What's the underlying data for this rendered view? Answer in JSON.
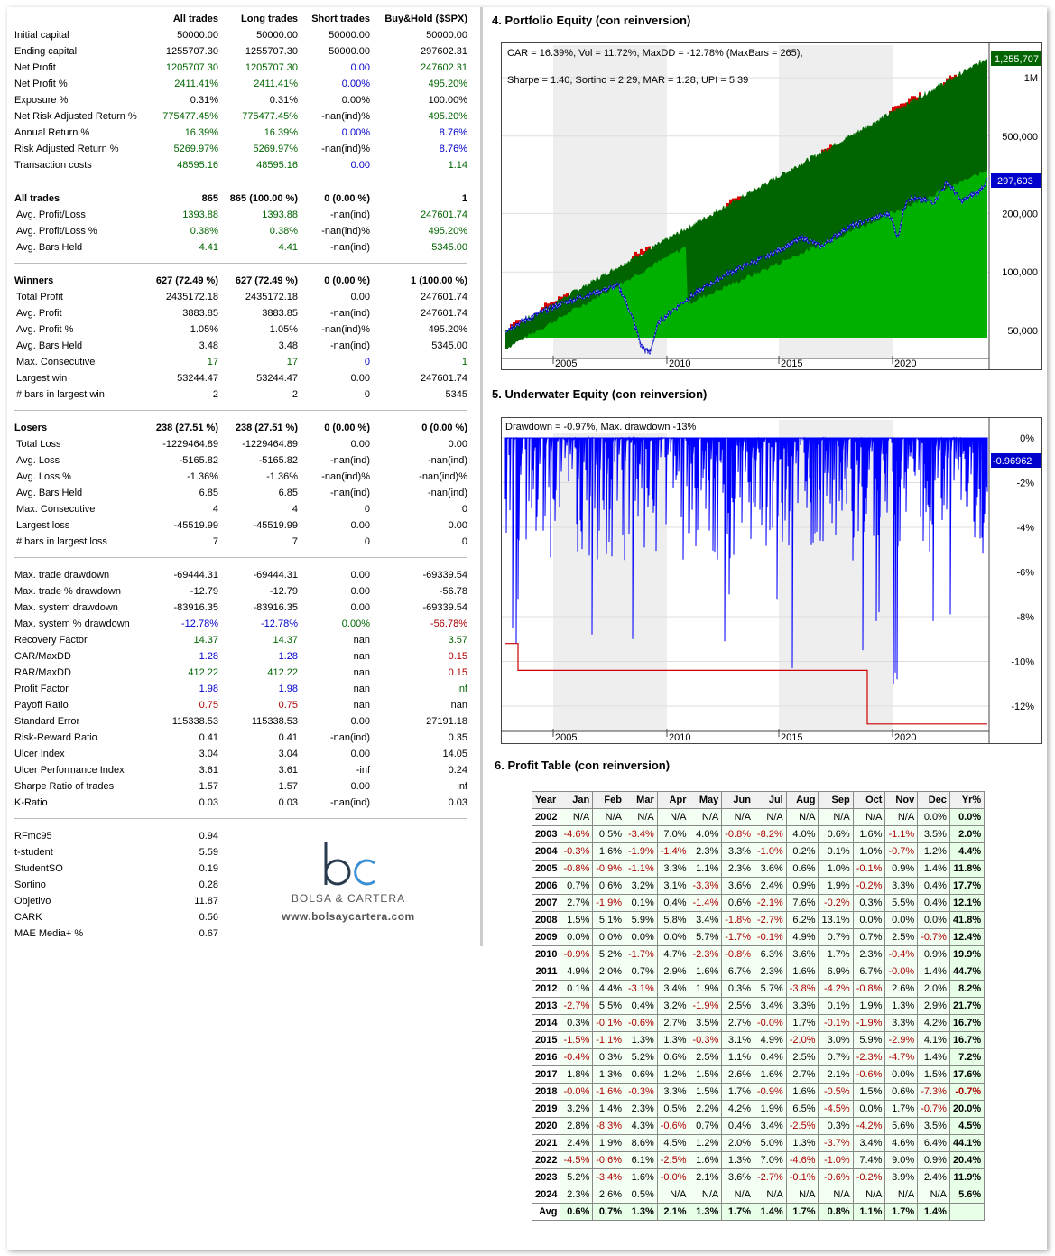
{
  "stats": {
    "columns": [
      "All trades",
      "Long trades",
      "Short trades",
      "Buy&Hold ($SPX)"
    ],
    "groups": [
      [
        {
          "label": "Initial capital",
          "v": [
            "50000.00",
            "50000.00",
            "50000.00",
            "50000.00"
          ],
          "c": [
            "",
            "",
            "",
            ""
          ]
        },
        {
          "label": "Ending capital",
          "v": [
            "1255707.30",
            "1255707.30",
            "50000.00",
            "297602.31"
          ],
          "c": [
            "",
            "",
            "",
            ""
          ]
        },
        {
          "label": "Net Profit",
          "v": [
            "1205707.30",
            "1205707.30",
            "0.00",
            "247602.31"
          ],
          "c": [
            "green",
            "green",
            "blue",
            "green"
          ]
        },
        {
          "label": "Net Profit %",
          "v": [
            "2411.41%",
            "2411.41%",
            "0.00%",
            "495.20%"
          ],
          "c": [
            "green",
            "green",
            "blue",
            "green"
          ]
        },
        {
          "label": "Exposure %",
          "v": [
            "0.31%",
            "0.31%",
            "0.00%",
            "100.00%"
          ],
          "c": [
            "",
            "",
            "",
            ""
          ]
        },
        {
          "label": "Net Risk Adjusted Return %",
          "v": [
            "775477.45%",
            "775477.45%",
            "-nan(ind)%",
            "495.20%"
          ],
          "c": [
            "green",
            "green",
            "",
            "green"
          ]
        },
        {
          "label": "Annual Return %",
          "v": [
            "16.39%",
            "16.39%",
            "0.00%",
            "8.76%"
          ],
          "c": [
            "green",
            "green",
            "blue",
            "blue"
          ]
        },
        {
          "label": "Risk Adjusted Return %",
          "v": [
            "5269.97%",
            "5269.97%",
            "-nan(ind)%",
            "8.76%"
          ],
          "c": [
            "green",
            "green",
            "",
            "blue"
          ]
        },
        {
          "label": "Transaction costs",
          "v": [
            "48595.16",
            "48595.16",
            "0.00",
            "1.14"
          ],
          "c": [
            "green",
            "green",
            "blue",
            "green"
          ]
        }
      ],
      [
        {
          "label": "All trades",
          "v": [
            "865",
            "865 (100.00 %)",
            "0 (0.00 %)",
            "1"
          ],
          "c": [
            "",
            "",
            "",
            ""
          ],
          "bold": true
        },
        {
          "label": " Avg. Profit/Loss",
          "v": [
            "1393.88",
            "1393.88",
            "-nan(ind)",
            "247601.74"
          ],
          "c": [
            "green",
            "green",
            "",
            "green"
          ]
        },
        {
          "label": " Avg. Profit/Loss %",
          "v": [
            "0.38%",
            "0.38%",
            "-nan(ind)%",
            "495.20%"
          ],
          "c": [
            "green",
            "green",
            "",
            "green"
          ]
        },
        {
          "label": " Avg. Bars Held",
          "v": [
            "4.41",
            "4.41",
            "-nan(ind)",
            "5345.00"
          ],
          "c": [
            "green",
            "green",
            "",
            "green"
          ]
        }
      ],
      [
        {
          "label": "Winners",
          "v": [
            "627 (72.49 %)",
            "627 (72.49 %)",
            "0 (0.00 %)",
            "1 (100.00 %)"
          ],
          "c": [
            "",
            "",
            "",
            ""
          ],
          "bold": true
        },
        {
          "label": " Total Profit",
          "v": [
            "2435172.18",
            "2435172.18",
            "0.00",
            "247601.74"
          ],
          "c": [
            "",
            "",
            "",
            ""
          ]
        },
        {
          "label": " Avg. Profit",
          "v": [
            "3883.85",
            "3883.85",
            "-nan(ind)",
            "247601.74"
          ],
          "c": [
            "",
            "",
            "",
            ""
          ]
        },
        {
          "label": " Avg. Profit %",
          "v": [
            "1.05%",
            "1.05%",
            "-nan(ind)%",
            "495.20%"
          ],
          "c": [
            "",
            "",
            "",
            ""
          ]
        },
        {
          "label": " Avg. Bars Held",
          "v": [
            "3.48",
            "3.48",
            "-nan(ind)",
            "5345.00"
          ],
          "c": [
            "",
            "",
            "",
            ""
          ]
        },
        {
          "label": " Max. Consecutive",
          "v": [
            "17",
            "17",
            "0",
            "1"
          ],
          "c": [
            "green",
            "green",
            "blue",
            "green"
          ]
        },
        {
          "label": " Largest win",
          "v": [
            "53244.47",
            "53244.47",
            "0.00",
            "247601.74"
          ],
          "c": [
            "",
            "",
            "",
            ""
          ]
        },
        {
          "label": " # bars in largest win",
          "v": [
            "2",
            "2",
            "0",
            "5345"
          ],
          "c": [
            "",
            "",
            "",
            ""
          ]
        }
      ],
      [
        {
          "label": "Losers",
          "v": [
            "238 (27.51 %)",
            "238 (27.51 %)",
            "0 (0.00 %)",
            "0 (0.00 %)"
          ],
          "c": [
            "",
            "",
            "",
            ""
          ],
          "bold": true
        },
        {
          "label": " Total Loss",
          "v": [
            "-1229464.89",
            "-1229464.89",
            "0.00",
            "0.00"
          ],
          "c": [
            "",
            "",
            "",
            ""
          ]
        },
        {
          "label": " Avg. Loss",
          "v": [
            "-5165.82",
            "-5165.82",
            "-nan(ind)",
            "-nan(ind)"
          ],
          "c": [
            "",
            "",
            "",
            ""
          ]
        },
        {
          "label": " Avg. Loss %",
          "v": [
            "-1.36%",
            "-1.36%",
            "-nan(ind)%",
            "-nan(ind)%"
          ],
          "c": [
            "",
            "",
            "",
            ""
          ]
        },
        {
          "label": " Avg. Bars Held",
          "v": [
            "6.85",
            "6.85",
            "-nan(ind)",
            "-nan(ind)"
          ],
          "c": [
            "",
            "",
            "",
            ""
          ]
        },
        {
          "label": " Max. Consecutive",
          "v": [
            "4",
            "4",
            "0",
            "0"
          ],
          "c": [
            "",
            "",
            "",
            ""
          ]
        },
        {
          "label": " Largest loss",
          "v": [
            "-45519.99",
            "-45519.99",
            "0.00",
            "0.00"
          ],
          "c": [
            "",
            "",
            "",
            ""
          ]
        },
        {
          "label": " # bars in largest loss",
          "v": [
            "7",
            "7",
            "0",
            "0"
          ],
          "c": [
            "",
            "",
            "",
            ""
          ]
        }
      ],
      [
        {
          "label": "Max. trade drawdown",
          "v": [
            "-69444.31",
            "-69444.31",
            "0.00",
            "-69339.54"
          ],
          "c": [
            "",
            "",
            "",
            ""
          ]
        },
        {
          "label": "Max. trade % drawdown",
          "v": [
            "-12.79",
            "-12.79",
            "0.00",
            "-56.78"
          ],
          "c": [
            "",
            "",
            "",
            ""
          ]
        },
        {
          "label": "Max. system drawdown",
          "v": [
            "-83916.35",
            "-83916.35",
            "0.00",
            "-69339.54"
          ],
          "c": [
            "",
            "",
            "",
            ""
          ]
        },
        {
          "label": "Max. system % drawdown",
          "v": [
            "-12.78%",
            "-12.78%",
            "0.00%",
            "-56.78%"
          ],
          "c": [
            "blue",
            "blue",
            "green",
            "red"
          ]
        },
        {
          "label": "Recovery Factor",
          "v": [
            "14.37",
            "14.37",
            "nan",
            "3.57"
          ],
          "c": [
            "green",
            "green",
            "",
            "green"
          ]
        },
        {
          "label": "CAR/MaxDD",
          "v": [
            "1.28",
            "1.28",
            "nan",
            "0.15"
          ],
          "c": [
            "blue",
            "blue",
            "",
            "red"
          ]
        },
        {
          "label": "RAR/MaxDD",
          "v": [
            "412.22",
            "412.22",
            "nan",
            "0.15"
          ],
          "c": [
            "green",
            "green",
            "",
            "red"
          ]
        },
        {
          "label": "Profit Factor",
          "v": [
            "1.98",
            "1.98",
            "nan",
            "inf"
          ],
          "c": [
            "blue",
            "blue",
            "",
            "green"
          ]
        },
        {
          "label": "Payoff Ratio",
          "v": [
            "0.75",
            "0.75",
            "nan",
            "nan"
          ],
          "c": [
            "red",
            "red",
            "",
            ""
          ]
        },
        {
          "label": "Standard Error",
          "v": [
            "115338.53",
            "115338.53",
            "0.00",
            "27191.18"
          ],
          "c": [
            "",
            "",
            "",
            ""
          ]
        },
        {
          "label": "Risk-Reward Ratio",
          "v": [
            "0.41",
            "0.41",
            "-nan(ind)",
            "0.35"
          ],
          "c": [
            "",
            "",
            "",
            ""
          ]
        },
        {
          "label": "Ulcer Index",
          "v": [
            "3.04",
            "3.04",
            "0.00",
            "14.05"
          ],
          "c": [
            "",
            "",
            "",
            ""
          ]
        },
        {
          "label": "Ulcer Performance Index",
          "v": [
            "3.61",
            "3.61",
            "-inf",
            "0.24"
          ],
          "c": [
            "",
            "",
            "",
            ""
          ]
        },
        {
          "label": "Sharpe Ratio of trades",
          "v": [
            "1.57",
            "1.57",
            "0.00",
            "inf"
          ],
          "c": [
            "",
            "",
            "",
            ""
          ]
        },
        {
          "label": "K-Ratio",
          "v": [
            "0.03",
            "0.03",
            "-nan(ind)",
            "0.03"
          ],
          "c": [
            "",
            "",
            "",
            ""
          ]
        }
      ]
    ],
    "extra": [
      {
        "label": "RFmc95",
        "v": "0.94"
      },
      {
        "label": "t-student",
        "v": "5.59"
      },
      {
        "label": "StudentSO",
        "v": "0.19"
      },
      {
        "label": "Sortino",
        "v": "0.28"
      },
      {
        "label": "Objetivo",
        "v": "11.87"
      },
      {
        "label": "CARK",
        "v": "0.56"
      },
      {
        "label": "MAE Media+ %",
        "v": "0.67"
      }
    ]
  },
  "logo": {
    "letters": "bc",
    "name": "BOLSA & CARTERA",
    "url": "www.bolsaycartera.com"
  },
  "equity": {
    "title": "4. Portfolio Equity (con reinversion)",
    "stats_line1": "CAR = 16.39%, Vol = 11.72%, MaxDD = -12.78% (MaxBars = 265),",
    "stats_line2": "Sharpe = 1.40, Sortino = 2.29, MAR = 1.28, UPI = 5.39",
    "last_value_label": "1,255,707",
    "bh_value_label": "297,603",
    "yticks": [
      "1M",
      "500,000",
      "200,000",
      "100,000",
      "50,000"
    ],
    "xticks": [
      "2005",
      "2010",
      "2015",
      "2020"
    ]
  },
  "underwater": {
    "title": "5. Underwater Equity (con reinversion)",
    "stats_line": "Drawdown = -0.97%, Max. drawdown -13%",
    "last_value_label": "-0.96962",
    "yticks": [
      "0%",
      "-2%",
      "-4%",
      "-6%",
      "-8%",
      "-10%",
      "-12%"
    ],
    "xticks": [
      "2005",
      "2010",
      "2015",
      "2020"
    ]
  },
  "profit_table": {
    "title": "6. Profit Table (con reinversion)",
    "headers": [
      "Year",
      "Jan",
      "Feb",
      "Mar",
      "Apr",
      "May",
      "Jun",
      "Jul",
      "Aug",
      "Sep",
      "Oct",
      "Nov",
      "Dec",
      "Yr%"
    ],
    "rows": [
      [
        "2002",
        "N/A",
        "N/A",
        "N/A",
        "N/A",
        "N/A",
        "N/A",
        "N/A",
        "N/A",
        "N/A",
        "N/A",
        "N/A",
        "0.0%",
        "0.0%"
      ],
      [
        "2003",
        "-4.6%",
        "0.5%",
        "-3.4%",
        "7.0%",
        "4.0%",
        "-0.8%",
        "-8.2%",
        "4.0%",
        "0.6%",
        "1.6%",
        "-1.1%",
        "3.5%",
        "2.0%"
      ],
      [
        "2004",
        "-0.3%",
        "1.6%",
        "-1.9%",
        "-1.4%",
        "2.3%",
        "3.3%",
        "-1.0%",
        "0.2%",
        "0.1%",
        "1.0%",
        "-0.7%",
        "1.2%",
        "4.4%"
      ],
      [
        "2005",
        "-0.8%",
        "-0.9%",
        "-1.1%",
        "3.3%",
        "1.1%",
        "2.3%",
        "3.6%",
        "0.6%",
        "1.0%",
        "-0.1%",
        "0.9%",
        "1.4%",
        "11.8%"
      ],
      [
        "2006",
        "0.7%",
        "0.6%",
        "3.2%",
        "3.1%",
        "-3.3%",
        "3.6%",
        "2.4%",
        "0.9%",
        "1.9%",
        "-0.2%",
        "3.3%",
        "0.4%",
        "17.7%"
      ],
      [
        "2007",
        "2.7%",
        "-1.9%",
        "0.1%",
        "0.4%",
        "-1.4%",
        "0.6%",
        "-2.1%",
        "7.6%",
        "-0.2%",
        "0.3%",
        "5.5%",
        "0.4%",
        "12.1%"
      ],
      [
        "2008",
        "1.5%",
        "5.1%",
        "5.9%",
        "5.8%",
        "3.4%",
        "-1.8%",
        "-2.7%",
        "6.2%",
        "13.1%",
        "0.0%",
        "0.0%",
        "0.0%",
        "41.8%"
      ],
      [
        "2009",
        "0.0%",
        "0.0%",
        "0.0%",
        "0.0%",
        "5.7%",
        "-1.7%",
        "-0.1%",
        "4.9%",
        "0.7%",
        "0.7%",
        "2.5%",
        "-0.7%",
        "12.4%"
      ],
      [
        "2010",
        "-0.9%",
        "5.2%",
        "-1.7%",
        "4.7%",
        "-2.3%",
        "-0.8%",
        "6.3%",
        "3.6%",
        "1.7%",
        "2.3%",
        "-0.4%",
        "0.9%",
        "19.9%"
      ],
      [
        "2011",
        "4.9%",
        "2.0%",
        "0.7%",
        "2.9%",
        "1.6%",
        "6.7%",
        "2.3%",
        "1.6%",
        "6.9%",
        "6.7%",
        "-0.0%",
        "1.4%",
        "44.7%"
      ],
      [
        "2012",
        "0.1%",
        "4.4%",
        "-3.1%",
        "3.4%",
        "1.9%",
        "0.3%",
        "5.7%",
        "-3.8%",
        "-4.2%",
        "-0.8%",
        "2.6%",
        "2.0%",
        "8.2%"
      ],
      [
        "2013",
        "-2.7%",
        "5.5%",
        "0.4%",
        "3.2%",
        "-1.9%",
        "2.5%",
        "3.4%",
        "3.3%",
        "0.1%",
        "1.9%",
        "1.3%",
        "2.9%",
        "21.7%"
      ],
      [
        "2014",
        "0.3%",
        "-0.1%",
        "-0.6%",
        "2.7%",
        "3.5%",
        "2.7%",
        "-0.0%",
        "1.7%",
        "-0.1%",
        "-1.9%",
        "3.3%",
        "4.2%",
        "16.7%"
      ],
      [
        "2015",
        "-1.5%",
        "-1.1%",
        "1.3%",
        "1.3%",
        "-0.3%",
        "3.1%",
        "4.9%",
        "-2.0%",
        "3.0%",
        "5.9%",
        "-2.9%",
        "4.1%",
        "16.7%"
      ],
      [
        "2016",
        "-0.4%",
        "0.3%",
        "5.2%",
        "0.6%",
        "2.5%",
        "1.1%",
        "0.4%",
        "2.5%",
        "0.7%",
        "-2.3%",
        "-4.7%",
        "1.4%",
        "7.2%"
      ],
      [
        "2017",
        "1.8%",
        "1.3%",
        "0.6%",
        "1.2%",
        "1.5%",
        "2.6%",
        "1.6%",
        "2.7%",
        "2.1%",
        "-0.6%",
        "0.0%",
        "1.5%",
        "17.6%"
      ],
      [
        "2018",
        "-0.0%",
        "-1.6%",
        "-0.3%",
        "3.3%",
        "1.5%",
        "1.7%",
        "-0.9%",
        "1.6%",
        "-0.5%",
        "1.5%",
        "0.6%",
        "-7.3%",
        "-0.7%"
      ],
      [
        "2019",
        "3.2%",
        "1.4%",
        "2.3%",
        "0.5%",
        "2.2%",
        "4.2%",
        "1.9%",
        "6.5%",
        "-4.5%",
        "0.0%",
        "1.7%",
        "-0.7%",
        "20.0%"
      ],
      [
        "2020",
        "2.8%",
        "-8.3%",
        "4.3%",
        "-0.6%",
        "0.7%",
        "0.4%",
        "3.4%",
        "-2.5%",
        "0.3%",
        "-4.2%",
        "5.6%",
        "3.5%",
        "4.5%"
      ],
      [
        "2021",
        "2.4%",
        "1.9%",
        "8.6%",
        "4.5%",
        "1.2%",
        "2.0%",
        "5.0%",
        "1.3%",
        "-3.7%",
        "3.4%",
        "4.6%",
        "6.4%",
        "44.1%"
      ],
      [
        "2022",
        "-4.5%",
        "-0.6%",
        "6.1%",
        "-2.5%",
        "1.6%",
        "1.3%",
        "7.0%",
        "-4.6%",
        "-1.0%",
        "7.4%",
        "9.0%",
        "0.9%",
        "20.4%"
      ],
      [
        "2023",
        "5.2%",
        "-3.4%",
        "1.6%",
        "-0.0%",
        "2.1%",
        "3.6%",
        "-2.7%",
        "-0.1%",
        "-0.6%",
        "-0.2%",
        "3.9%",
        "2.4%",
        "11.9%"
      ],
      [
        "2024",
        "2.3%",
        "2.6%",
        "0.5%",
        "N/A",
        "N/A",
        "N/A",
        "N/A",
        "N/A",
        "N/A",
        "N/A",
        "N/A",
        "N/A",
        "5.6%"
      ]
    ],
    "avg": [
      "Avg",
      "0.6%",
      "0.7%",
      "1.3%",
      "2.1%",
      "1.3%",
      "1.7%",
      "1.4%",
      "1.7%",
      "0.8%",
      "1.1%",
      "1.7%",
      "1.4%",
      ""
    ]
  }
}
